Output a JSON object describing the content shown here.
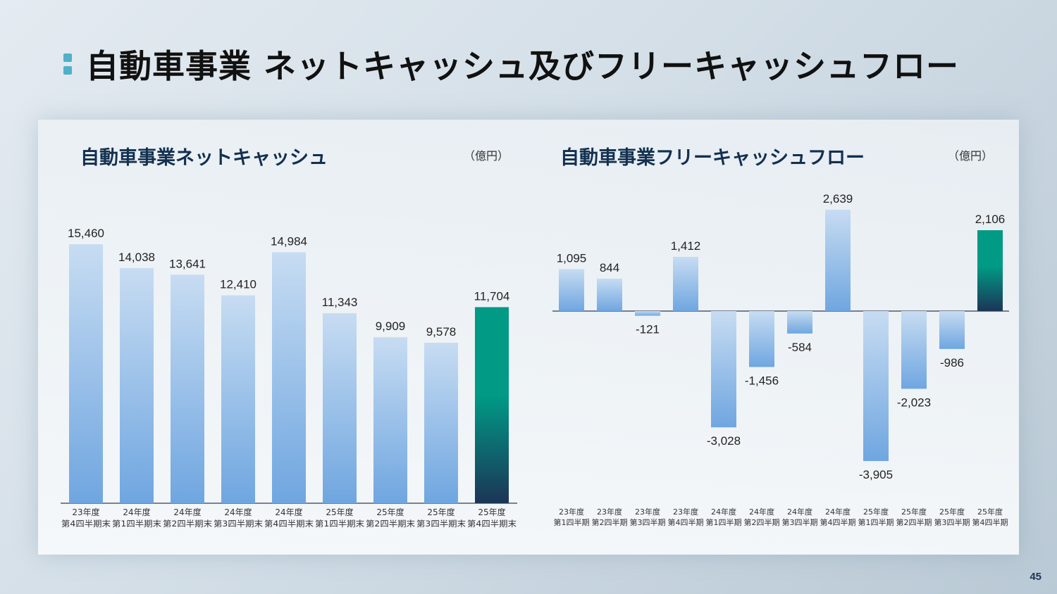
{
  "page": {
    "title": "自動車事業 ネットキャッシュ及びフリーキャッシュフロー",
    "page_number": "45"
  },
  "colors": {
    "bar_light_top": "#c7dcf2",
    "bar_light_bottom": "#6fa6e0",
    "highlight_top": "#009a85",
    "highlight_bottom": "#1c3557",
    "title_accent": "#4fb0c8"
  },
  "left_panel": {
    "title": "自動車事業ネットキャッシュ",
    "unit": "（億円）"
  },
  "right_panel": {
    "title": "自動車事業フリーキャッシュフロー",
    "unit": "（億円）"
  },
  "chart_data": [
    {
      "type": "bar",
      "categories": [
        [
          "23年度",
          "第4四半期末"
        ],
        [
          "24年度",
          "第1四半期末"
        ],
        [
          "24年度",
          "第2四半期末"
        ],
        [
          "24年度",
          "第3四半期末"
        ],
        [
          "24年度",
          "第4四半期末"
        ],
        [
          "25年度",
          "第1四半期末"
        ],
        [
          "25年度",
          "第2四半期末"
        ],
        [
          "25年度",
          "第3四半期末"
        ],
        [
          "25年度",
          "第4四半期末"
        ]
      ],
      "values": [
        15460,
        14038,
        13641,
        12410,
        14984,
        11343,
        9909,
        9578,
        11704
      ],
      "value_labels": [
        "15,460",
        "14,038",
        "13,641",
        "12,410",
        "14,984",
        "11,343",
        "9,909",
        "9,578",
        "11,704"
      ],
      "highlight_index": 8,
      "ylim": [
        0,
        16000
      ],
      "grid": false
    },
    {
      "type": "bar",
      "categories": [
        [
          "23年度",
          "第1四半期"
        ],
        [
          "23年度",
          "第2四半期"
        ],
        [
          "23年度",
          "第3四半期"
        ],
        [
          "23年度",
          "第4四半期"
        ],
        [
          "24年度",
          "第1四半期"
        ],
        [
          "24年度",
          "第2四半期"
        ],
        [
          "24年度",
          "第3四半期"
        ],
        [
          "24年度",
          "第4四半期"
        ],
        [
          "25年度",
          "第1四半期"
        ],
        [
          "25年度",
          "第2四半期"
        ],
        [
          "25年度",
          "第3四半期"
        ],
        [
          "25年度",
          "第4四半期"
        ]
      ],
      "values": [
        1095,
        844,
        -121,
        1412,
        -3028,
        -1456,
        -584,
        2639,
        -3905,
        -2023,
        -986,
        2106
      ],
      "value_labels": [
        "1,095",
        "844",
        "-121",
        "1,412",
        "-3,028",
        "-1,456",
        "-584",
        "2,639",
        "-3,905",
        "-2,023",
        "-986",
        "2,106"
      ],
      "highlight_index": 11,
      "ylim": [
        -3905,
        2639
      ],
      "grid": false
    }
  ]
}
